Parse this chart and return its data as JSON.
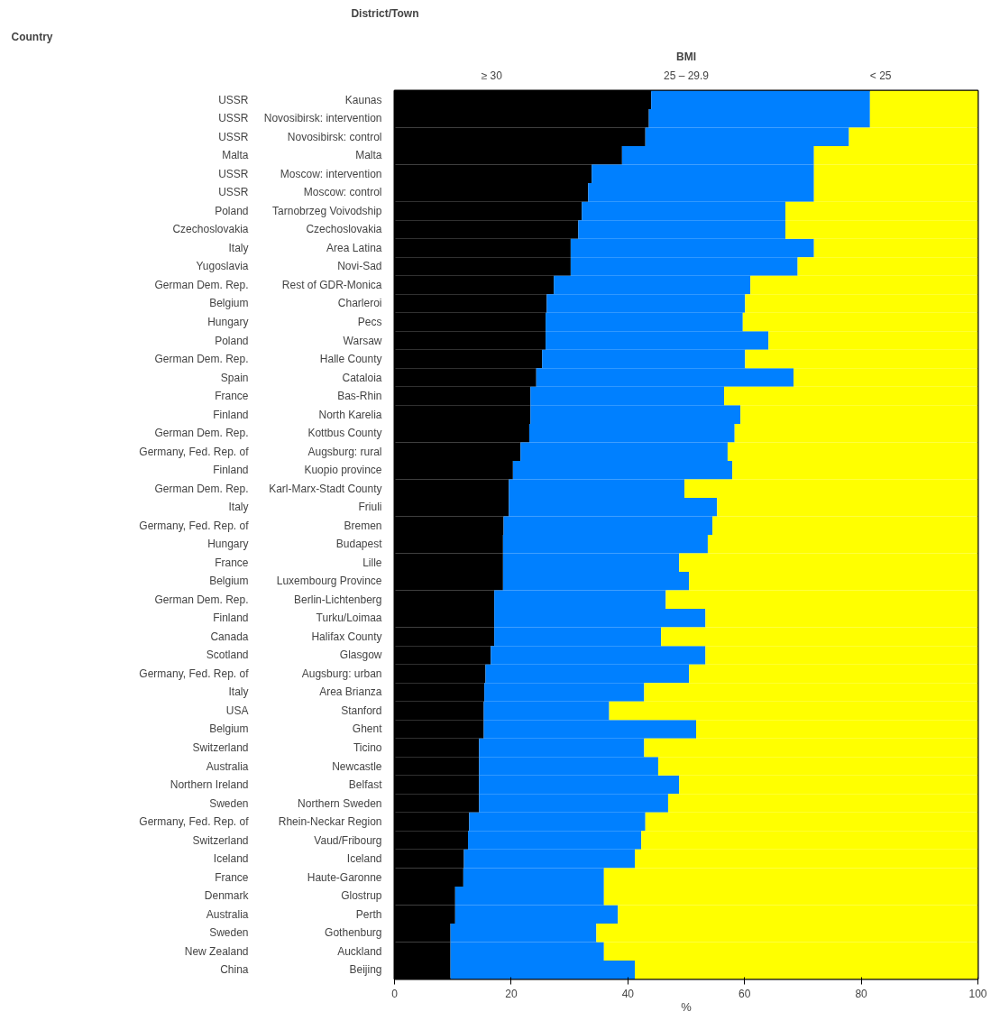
{
  "chart_data": {
    "type": "bar",
    "orientation": "horizontal",
    "stacked": true,
    "legend_title": "BMI",
    "xlabel": "%",
    "xlim": [
      0,
      100
    ],
    "xticks": [
      0,
      20,
      40,
      60,
      80,
      100
    ],
    "annotations": [
      "Country",
      "District/Town"
    ],
    "categories": [
      "Kaunas",
      "Novosibirsk: intervention",
      "Novosibirsk: control",
      "Malta",
      "Moscow: intervention",
      "Moscow: control",
      "Tarnobrzeg Voivodship",
      "Czechoslovakia",
      "Area Latina",
      "Novi-Sad",
      "Rest of GDR-Monica",
      "Charleroi",
      "Pecs",
      "Warsaw",
      "Halle County",
      "Cataloia",
      "Bas-Rhin",
      "North Karelia",
      "Kottbus County",
      "Augsburg: rural",
      "Kuopio province",
      "Karl-Marx-Stadt County",
      "Friuli",
      "Bremen",
      "Budapest",
      "Lille",
      "Luxembourg Province",
      "Berlin-Lichtenberg",
      "Turku/Loimaa",
      "Halifax County",
      "Glasgow",
      "Augsburg: urban",
      "Area Brianza",
      "Stanford",
      "Ghent",
      "Ticino",
      "Newcastle",
      "Belfast",
      "Northern Sweden",
      "Rhein-Neckar Region",
      "Vaud/Fribourg",
      "Iceland",
      "Haute-Garonne",
      "Glostrup",
      "Perth",
      "Gothenburg",
      "Auckland",
      "Beijing"
    ],
    "y2_categories": [
      "USSR",
      "USSR",
      "USSR",
      "Malta",
      "USSR",
      "USSR",
      "Poland",
      "Czechoslovakia",
      "Italy",
      "Yugoslavia",
      "German Dem. Rep.",
      "Belgium",
      "Hungary",
      "Poland",
      "German Dem. Rep.",
      "Spain",
      "France",
      "Finland",
      "German Dem. Rep.",
      "Germany, Fed. Rep. of",
      "Finland",
      "German Dem. Rep.",
      "Italy",
      "Germany, Fed. Rep. of",
      "Hungary",
      "France",
      "Belgium",
      "German Dem. Rep.",
      "Finland",
      "Canada",
      "Scotland",
      "Germany, Fed. Rep. of",
      "Italy",
      "USA",
      "Belgium",
      "Switzerland",
      "Australia",
      "Northern Ireland",
      "Sweden",
      "Germany, Fed. Rep. of",
      "Switzerland",
      "Iceland",
      "France",
      "Denmark",
      "Australia",
      "Sweden",
      "New Zealand",
      "China"
    ],
    "series": [
      {
        "name": "≥ 30",
        "color": "#000000",
        "values": [
          44.0,
          43.6,
          43.0,
          39.0,
          33.8,
          33.2,
          32.1,
          31.5,
          30.2,
          30.2,
          27.3,
          26.1,
          25.9,
          25.9,
          25.3,
          24.3,
          23.3,
          23.3,
          23.1,
          21.6,
          20.3,
          19.6,
          19.6,
          18.7,
          18.6,
          18.6,
          18.6,
          17.1,
          17.1,
          17.1,
          16.5,
          15.6,
          15.4,
          15.3,
          15.3,
          14.5,
          14.5,
          14.5,
          14.5,
          12.8,
          12.6,
          11.9,
          11.8,
          10.4,
          10.4,
          9.6,
          9.6,
          9.6
        ]
      },
      {
        "name": "25 – 29.9",
        "color": "#0080ff",
        "values": [
          37.5,
          37.9,
          34.9,
          32.9,
          38.1,
          38.7,
          34.9,
          35.5,
          41.7,
          38.9,
          33.7,
          34.0,
          33.8,
          38.2,
          34.8,
          44.1,
          33.2,
          36.0,
          35.2,
          35.5,
          37.6,
          30.1,
          35.7,
          35.8,
          35.1,
          30.2,
          31.9,
          29.4,
          36.2,
          28.6,
          36.8,
          34.9,
          27.4,
          21.5,
          36.4,
          28.3,
          30.7,
          34.3,
          32.4,
          30.2,
          29.7,
          29.3,
          24.1,
          25.5,
          27.9,
          25.0,
          26.3,
          31.6
        ]
      },
      {
        "name": "< 25",
        "color": "#ffff00",
        "values": [
          18.5,
          18.5,
          22.1,
          28.1,
          28.1,
          28.1,
          33.0,
          33.0,
          28.1,
          30.9,
          39.0,
          39.9,
          40.3,
          35.9,
          39.9,
          31.6,
          43.5,
          40.7,
          41.7,
          42.9,
          42.1,
          50.3,
          44.7,
          45.5,
          46.3,
          51.2,
          49.5,
          53.5,
          46.7,
          54.3,
          46.7,
          49.5,
          57.2,
          63.2,
          48.3,
          57.2,
          54.8,
          51.2,
          53.1,
          57.0,
          57.7,
          58.8,
          64.1,
          64.1,
          61.7,
          65.4,
          64.1,
          58.8
        ]
      }
    ]
  }
}
